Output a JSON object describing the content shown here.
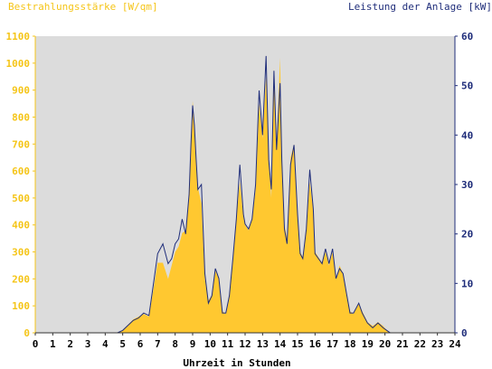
{
  "chart_data": {
    "type": "area",
    "left_axis_title": "Bestrahlungsstärke [W/qm]",
    "right_axis_title": "Leistung der Anlage [kW]",
    "xlabel": "Uhrzeit in Stunden",
    "x_ticks": [
      "0",
      "1",
      "2",
      "3",
      "4",
      "5",
      "6",
      "7",
      "8",
      "9",
      "10",
      "11",
      "12",
      "13",
      "14",
      "15",
      "16",
      "17",
      "18",
      "19",
      "20",
      "21",
      "22",
      "23",
      "24"
    ],
    "xlim": [
      0,
      24
    ],
    "ylim_left": [
      0,
      1100
    ],
    "ylim_right": [
      0,
      60
    ],
    "y_ticks_left": [
      "0",
      "100",
      "200",
      "300",
      "400",
      "500",
      "600",
      "700",
      "800",
      "900",
      "1000",
      "1100"
    ],
    "y_ticks_right": [
      "0",
      "10",
      "20",
      "30",
      "40",
      "50",
      "60"
    ],
    "grid": false,
    "colors": {
      "plot_background": "#dcdcdc",
      "irradiance_fill": "#ffc830",
      "power_line": "#1f2d7a",
      "left_axis": "#f5c518",
      "right_axis": "#1f2d7a"
    },
    "series": [
      {
        "name": "Bestrahlungsstärke [W/qm]",
        "axis": "left",
        "x": [
          0,
          4.7,
          5.0,
          5.3,
          5.6,
          5.9,
          6.2,
          6.5,
          6.8,
          7.0,
          7.3,
          7.6,
          7.8,
          8.0,
          8.2,
          8.4,
          8.6,
          8.8,
          8.9,
          9.0,
          9.1,
          9.2,
          9.3,
          9.5,
          9.7,
          9.9,
          10.1,
          10.3,
          10.5,
          10.7,
          10.9,
          11.1,
          11.3,
          11.5,
          11.7,
          11.9,
          12.0,
          12.2,
          12.4,
          12.6,
          12.8,
          13.0,
          13.2,
          13.35,
          13.5,
          13.65,
          13.8,
          14.0,
          14.1,
          14.25,
          14.4,
          14.6,
          14.8,
          15.0,
          15.15,
          15.3,
          15.5,
          15.7,
          15.9,
          16.0,
          16.2,
          16.4,
          16.6,
          16.8,
          17.0,
          17.2,
          17.4,
          17.6,
          17.8,
          18.0,
          18.2,
          18.5,
          18.7,
          19.0,
          19.3,
          19.6,
          19.9,
          20.1,
          20.3,
          24
        ],
        "y": [
          0,
          0,
          10,
          30,
          50,
          60,
          70,
          60,
          180,
          260,
          260,
          200,
          250,
          300,
          320,
          370,
          380,
          500,
          700,
          860,
          780,
          650,
          540,
          480,
          200,
          120,
          140,
          230,
          200,
          80,
          70,
          130,
          280,
          430,
          560,
          430,
          400,
          380,
          420,
          530,
          850,
          720,
          950,
          640,
          500,
          980,
          700,
          1020,
          660,
          400,
          350,
          650,
          700,
          450,
          300,
          280,
          380,
          560,
          450,
          300,
          280,
          260,
          300,
          250,
          300,
          200,
          250,
          220,
          150,
          80,
          70,
          110,
          80,
          40,
          25,
          40,
          25,
          10,
          0,
          0
        ]
      },
      {
        "name": "Leistung der Anlage [kW]",
        "axis": "right",
        "x": [
          0,
          4.7,
          5.0,
          5.3,
          5.6,
          5.9,
          6.2,
          6.5,
          6.8,
          7.0,
          7.3,
          7.6,
          7.8,
          8.0,
          8.2,
          8.4,
          8.6,
          8.8,
          8.9,
          9.0,
          9.1,
          9.2,
          9.3,
          9.5,
          9.7,
          9.9,
          10.1,
          10.3,
          10.5,
          10.7,
          10.9,
          11.1,
          11.3,
          11.5,
          11.7,
          11.9,
          12.0,
          12.2,
          12.4,
          12.6,
          12.8,
          13.0,
          13.2,
          13.35,
          13.5,
          13.65,
          13.8,
          14.0,
          14.1,
          14.25,
          14.4,
          14.6,
          14.8,
          15.0,
          15.15,
          15.3,
          15.5,
          15.7,
          15.9,
          16.0,
          16.2,
          16.4,
          16.6,
          16.8,
          17.0,
          17.2,
          17.4,
          17.6,
          17.8,
          18.0,
          18.2,
          18.5,
          18.7,
          19.0,
          19.3,
          19.6,
          19.9,
          20.1,
          20.3,
          24
        ],
        "y": [
          0,
          0,
          0.5,
          1.5,
          2.5,
          3,
          4,
          3.5,
          11,
          16,
          18,
          14,
          15,
          18,
          19,
          23,
          20,
          28,
          38,
          46,
          42,
          35,
          29,
          30,
          12,
          6,
          7.5,
          13,
          11,
          4,
          4,
          7.5,
          15,
          23,
          34,
          24,
          22,
          21,
          23,
          30,
          49,
          40,
          56,
          35,
          29,
          53,
          37,
          50.5,
          35,
          21,
          18,
          34,
          38,
          24,
          16,
          15,
          21,
          33,
          25,
          16,
          15,
          14,
          17,
          14,
          17,
          11,
          13,
          12,
          8,
          4,
          4,
          6,
          4,
          2,
          1,
          2,
          1,
          0.5,
          0,
          0
        ]
      }
    ]
  }
}
